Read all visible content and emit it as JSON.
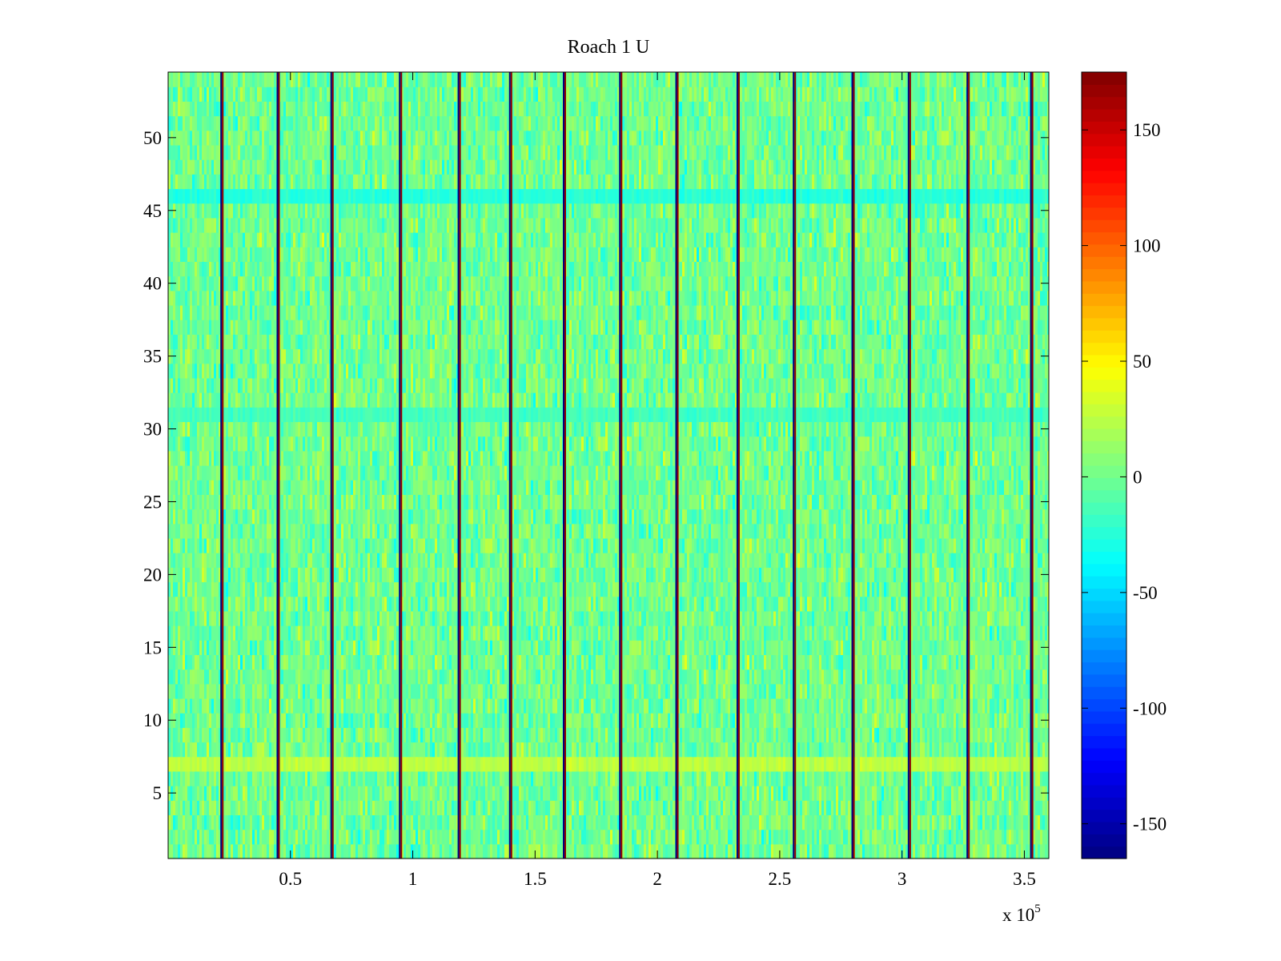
{
  "chart_data": {
    "type": "heatmap",
    "title": "Roach 1 U",
    "xlabel": "",
    "ylabel": "",
    "x_range": [
      0,
      360000
    ],
    "y_range": [
      0.5,
      54.5
    ],
    "rows": 54,
    "x_ticks": [
      50000,
      100000,
      150000,
      200000,
      250000,
      300000,
      350000
    ],
    "x_tick_labels": [
      "0.5",
      "1",
      "1.5",
      "2",
      "2.5",
      "3",
      "3.5"
    ],
    "x_exponent_base": "x 10",
    "x_exponent_power": "5",
    "y_ticks": [
      5,
      10,
      15,
      20,
      25,
      30,
      35,
      40,
      45,
      50
    ],
    "y_tick_labels": [
      "5",
      "10",
      "15",
      "20",
      "25",
      "30",
      "35",
      "40",
      "45",
      "50"
    ],
    "background_mean": 0,
    "background_spread": 35,
    "notes": "Values are dense noise around 0 with periodic vertical stripes of strong positive/negative values.",
    "stripe_x_positions": [
      22000,
      45000,
      67000,
      95000,
      119000,
      140000,
      162000,
      185000,
      208000,
      233000,
      256000,
      280000,
      303000,
      327000,
      353000
    ],
    "stripe_value_low": -165,
    "stripe_value_high": 170,
    "uniform_rows": [
      {
        "row": 7,
        "value": 25
      },
      {
        "row": 31,
        "value": -15
      },
      {
        "row": 46,
        "value": -25
      }
    ],
    "colorbar": {
      "colormap": "jet",
      "clim": [
        -165,
        175
      ],
      "ticks": [
        -150,
        -100,
        -50,
        0,
        50,
        100,
        150
      ],
      "tick_labels": [
        "-150",
        "-100",
        "-50",
        "0",
        "50",
        "100",
        "150"
      ]
    }
  }
}
